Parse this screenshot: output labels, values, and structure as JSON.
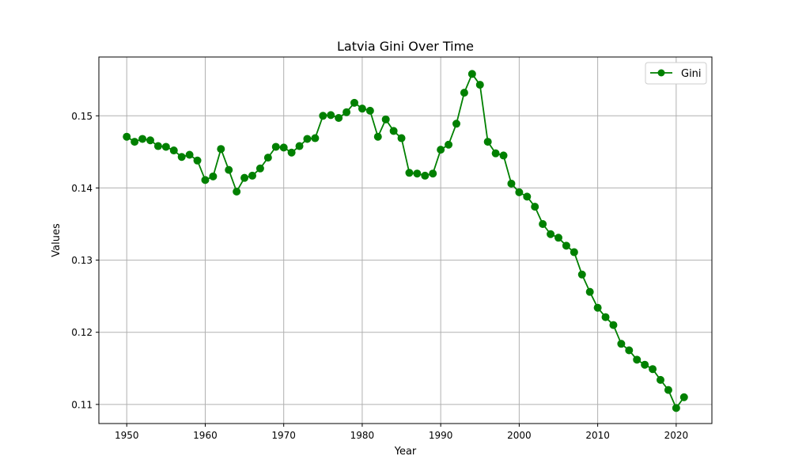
{
  "chart_data": {
    "type": "line",
    "title": "Latvia Gini Over Time",
    "xlabel": "Year",
    "ylabel": "Values",
    "xlim": [
      1946.45,
      2024.55
    ],
    "ylim": [
      0.10735,
      0.15815
    ],
    "x_ticks": [
      1950,
      1960,
      1970,
      1980,
      1990,
      2000,
      2010,
      2020
    ],
    "y_ticks": [
      0.11,
      0.12,
      0.13,
      0.14,
      0.15
    ],
    "x_tick_labels": [
      "1950",
      "1960",
      "1970",
      "1980",
      "1990",
      "2000",
      "2010",
      "2020"
    ],
    "y_tick_labels": [
      "0.11",
      "0.12",
      "0.13",
      "0.14",
      "0.15"
    ],
    "grid": true,
    "legend_position": "top-right",
    "series": [
      {
        "name": "Gini",
        "color": "#008000",
        "marker": "circle",
        "x": [
          1950,
          1951,
          1952,
          1953,
          1954,
          1955,
          1956,
          1957,
          1958,
          1959,
          1960,
          1961,
          1962,
          1963,
          1964,
          1965,
          1966,
          1967,
          1968,
          1969,
          1970,
          1971,
          1972,
          1973,
          1974,
          1975,
          1976,
          1977,
          1978,
          1979,
          1980,
          1981,
          1982,
          1983,
          1984,
          1985,
          1986,
          1987,
          1988,
          1989,
          1990,
          1991,
          1992,
          1993,
          1994,
          1995,
          1996,
          1997,
          1998,
          1999,
          2000,
          2001,
          2002,
          2003,
          2004,
          2005,
          2006,
          2007,
          2008,
          2009,
          2010,
          2011,
          2012,
          2013,
          2014,
          2015,
          2016,
          2017,
          2018,
          2019,
          2020,
          2021
        ],
        "values": [
          0.1471,
          0.1464,
          0.1468,
          0.1466,
          0.1458,
          0.1457,
          0.1452,
          0.1443,
          0.1446,
          0.1438,
          0.1411,
          0.1416,
          0.1454,
          0.1425,
          0.1395,
          0.1414,
          0.1417,
          0.1427,
          0.1442,
          0.1457,
          0.1456,
          0.1449,
          0.1458,
          0.1468,
          0.1469,
          0.15,
          0.1501,
          0.1497,
          0.1505,
          0.1518,
          0.151,
          0.1507,
          0.1471,
          0.1495,
          0.1479,
          0.1469,
          0.1421,
          0.142,
          0.1417,
          0.142,
          0.1453,
          0.146,
          0.1489,
          0.1532,
          0.1558,
          0.1543,
          0.1464,
          0.1448,
          0.1445,
          0.1406,
          0.1394,
          0.1388,
          0.1374,
          0.135,
          0.1336,
          0.1331,
          0.132,
          0.1311,
          0.128,
          0.1256,
          0.1234,
          0.1221,
          0.121,
          0.1184,
          0.1175,
          0.1162,
          0.1155,
          0.1149,
          0.1134,
          0.112,
          0.1095,
          0.111
        ]
      }
    ]
  }
}
